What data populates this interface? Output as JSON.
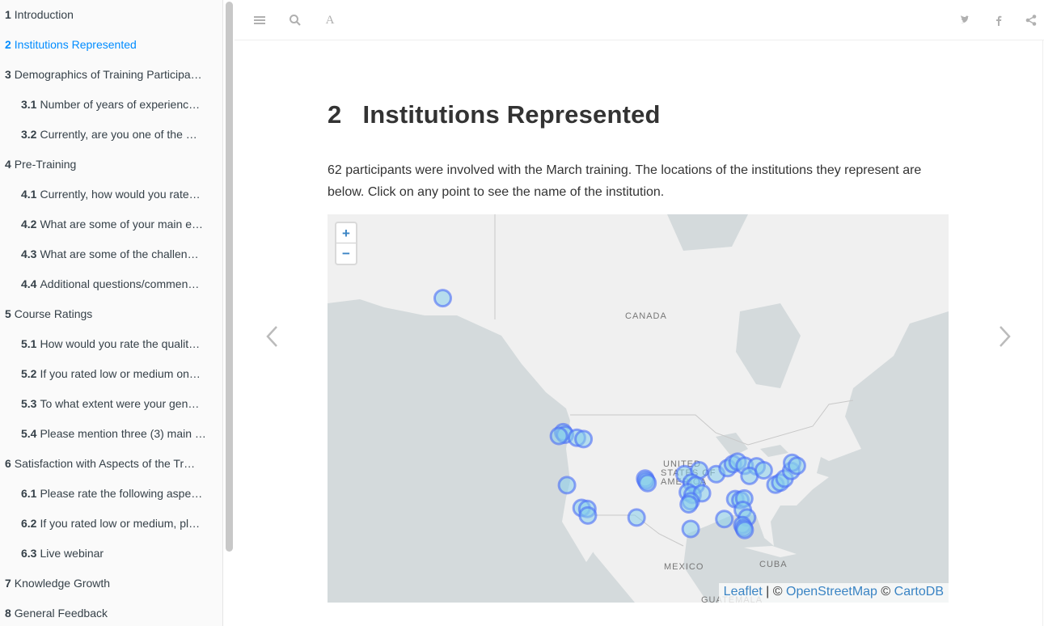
{
  "sidebar": {
    "items": [
      {
        "num": "1",
        "label": "Introduction",
        "level": 1
      },
      {
        "num": "2",
        "label": "Institutions Represented",
        "level": 1,
        "active": true
      },
      {
        "num": "3",
        "label": "Demographics of Training Participa…",
        "level": 1
      },
      {
        "num": "3.1",
        "label": "Number of years of experienc…",
        "level": 2
      },
      {
        "num": "3.2",
        "label": "Currently, are you one of the …",
        "level": 2
      },
      {
        "num": "4",
        "label": "Pre-Training",
        "level": 1
      },
      {
        "num": "4.1",
        "label": "Currently, how would you rate…",
        "level": 2
      },
      {
        "num": "4.2",
        "label": "What are some of your main e…",
        "level": 2
      },
      {
        "num": "4.3",
        "label": "What are some of the challen…",
        "level": 2
      },
      {
        "num": "4.4",
        "label": "Additional questions/commen…",
        "level": 2
      },
      {
        "num": "5",
        "label": "Course Ratings",
        "level": 1
      },
      {
        "num": "5.1",
        "label": "How would you rate the qualit…",
        "level": 2
      },
      {
        "num": "5.2",
        "label": "If you rated low or medium on…",
        "level": 2
      },
      {
        "num": "5.3",
        "label": "To what extent were your gen…",
        "level": 2
      },
      {
        "num": "5.4",
        "label": "Please mention three (3) main …",
        "level": 2
      },
      {
        "num": "6",
        "label": "Satisfaction with Aspects of the Tr…",
        "level": 1
      },
      {
        "num": "6.1",
        "label": "Please rate the following aspe…",
        "level": 2
      },
      {
        "num": "6.2",
        "label": "If you rated low or medium, pl…",
        "level": 2
      },
      {
        "num": "6.3",
        "label": "Live webinar",
        "level": 2
      },
      {
        "num": "7",
        "label": "Knowledge Growth",
        "level": 1
      },
      {
        "num": "8",
        "label": "General Feedback",
        "level": 1
      }
    ]
  },
  "header": {
    "icons": [
      "menu-icon",
      "search-icon",
      "font-settings-icon",
      "twitter-icon",
      "facebook-icon",
      "share-icon"
    ],
    "font_glyph": "A"
  },
  "page": {
    "section_number": "2",
    "title": "Institutions Represented",
    "intro": "62 participants were involved with the March training. The locations of the institutions they represent are below. Click on any point to see the name of the institution."
  },
  "map": {
    "zoom_in": "+",
    "zoom_out": "−",
    "labels": {
      "canada": "CANADA",
      "usa_line1": "UNITED",
      "usa_line2": "STATES OF",
      "usa_line3": "AMERICA",
      "mexico": "MEXICO",
      "cuba": "CUBA",
      "guatemala": "GUATEMALA"
    },
    "attribution": {
      "leaflet": "Leaflet",
      "sep1": " | © ",
      "osm": "OpenStreetMap",
      "sep2": " © ",
      "carto": "CartoDB"
    },
    "marker_colors": {
      "ring": "#4a6cf7",
      "fill": "#87ceeb"
    },
    "points": [
      {
        "lat": 64.8,
        "lon": -147.7
      },
      {
        "lat": 47.6,
        "lon": -122.3
      },
      {
        "lat": 47.2,
        "lon": -121.9
      },
      {
        "lat": 47.0,
        "lon": -123.2
      },
      {
        "lat": 46.7,
        "lon": -119.4
      },
      {
        "lat": 46.5,
        "lon": -118.0
      },
      {
        "lat": 38.5,
        "lon": -121.5
      },
      {
        "lat": 34.2,
        "lon": -118.4
      },
      {
        "lat": 34.0,
        "lon": -117.2
      },
      {
        "lat": 32.7,
        "lon": -117.1
      },
      {
        "lat": 32.3,
        "lon": -106.8
      },
      {
        "lat": 39.7,
        "lon": -105.0
      },
      {
        "lat": 39.3,
        "lon": -104.8
      },
      {
        "lat": 38.9,
        "lon": -104.5
      },
      {
        "lat": 40.5,
        "lon": -96.7
      },
      {
        "lat": 41.2,
        "lon": -93.6
      },
      {
        "lat": 39.0,
        "lon": -95.2
      },
      {
        "lat": 38.5,
        "lon": -94.3
      },
      {
        "lat": 37.2,
        "lon": -96.0
      },
      {
        "lat": 36.7,
        "lon": -95.0
      },
      {
        "lat": 37.0,
        "lon": -93.0
      },
      {
        "lat": 35.5,
        "lon": -95.4
      },
      {
        "lat": 34.9,
        "lon": -95.8
      },
      {
        "lat": 30.0,
        "lon": -95.4
      },
      {
        "lat": 32.0,
        "lon": -88.3
      },
      {
        "lat": 40.5,
        "lon": -90.0
      },
      {
        "lat": 41.6,
        "lon": -87.6
      },
      {
        "lat": 42.3,
        "lon": -86.5
      },
      {
        "lat": 42.7,
        "lon": -85.5
      },
      {
        "lat": 42.0,
        "lon": -84.0
      },
      {
        "lat": 41.9,
        "lon": -81.5
      },
      {
        "lat": 40.2,
        "lon": -83.0
      },
      {
        "lat": 41.2,
        "lon": -80.0
      },
      {
        "lat": 35.9,
        "lon": -86.0
      },
      {
        "lat": 35.7,
        "lon": -84.9
      },
      {
        "lat": 36.0,
        "lon": -84.1
      },
      {
        "lat": 33.8,
        "lon": -84.4
      },
      {
        "lat": 32.3,
        "lon": -83.5
      },
      {
        "lat": 30.8,
        "lon": -84.5
      },
      {
        "lat": 30.2,
        "lon": -84.2
      },
      {
        "lat": 29.8,
        "lon": -84.0
      },
      {
        "lat": 38.6,
        "lon": -77.5
      },
      {
        "lat": 39.0,
        "lon": -76.5
      },
      {
        "lat": 39.7,
        "lon": -75.6
      },
      {
        "lat": 41.1,
        "lon": -74.2
      },
      {
        "lat": 42.5,
        "lon": -74.0
      },
      {
        "lat": 42.0,
        "lon": -73.0
      }
    ]
  }
}
